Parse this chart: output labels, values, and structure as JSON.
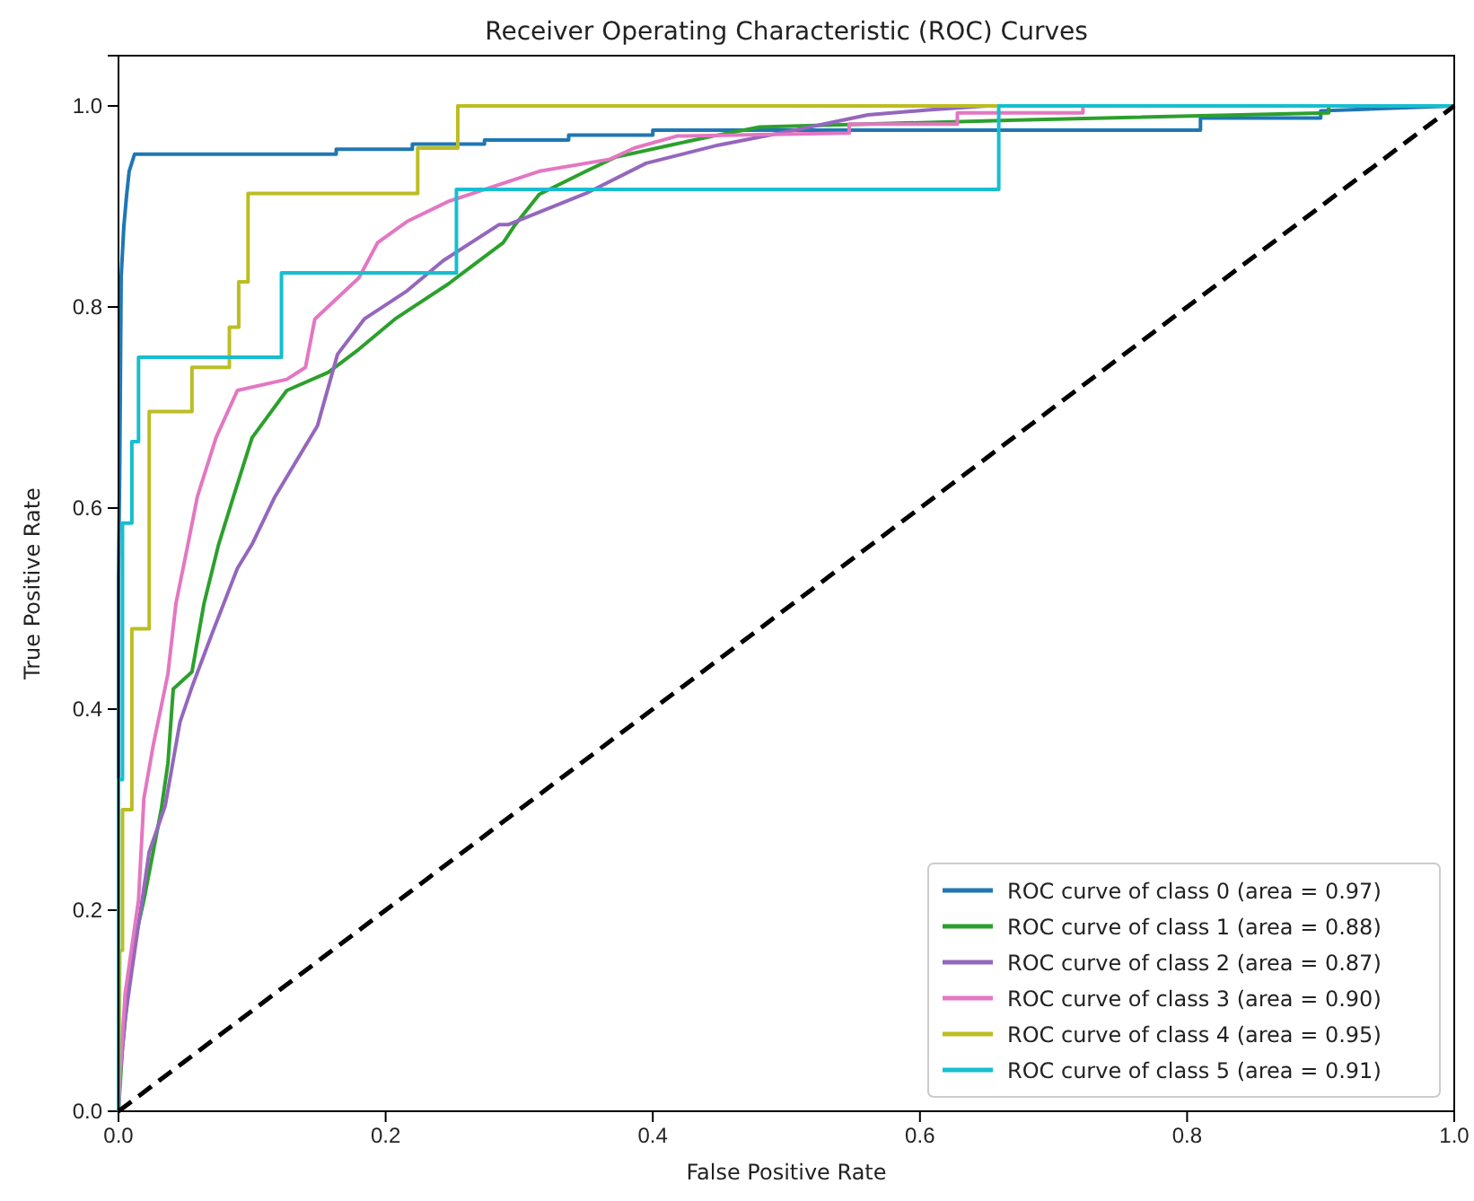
{
  "chart_data": {
    "type": "line",
    "title": "Receiver Operating Characteristic (ROC) Curves",
    "xlabel": "False Positive Rate",
    "ylabel": "True Positive Rate",
    "xlim": [
      0,
      1
    ],
    "ylim": [
      0,
      1.05
    ],
    "xticks": [
      {
        "value": 0,
        "label": "0.0"
      },
      {
        "value": 0.2,
        "label": "0.2"
      },
      {
        "value": 0.4,
        "label": "0.4"
      },
      {
        "value": 0.6,
        "label": "0.6"
      },
      {
        "value": 0.8,
        "label": "0.8"
      },
      {
        "value": 1,
        "label": "1.0"
      }
    ],
    "yticks": [
      {
        "value": 0,
        "label": "0.0"
      },
      {
        "value": 0.2,
        "label": "0.2"
      },
      {
        "value": 0.4,
        "label": "0.4"
      },
      {
        "value": 0.6,
        "label": "0.6"
      },
      {
        "value": 0.8,
        "label": "0.8"
      },
      {
        "value": 1,
        "label": "1.0"
      }
    ],
    "legend": "bottom right",
    "series": [
      {
        "name": "ROC curve of class 0 (area = 0.97)",
        "color": "#1f77b4",
        "x": [
          0,
          0,
          0.001,
          0.002,
          0.004,
          0.006,
          0.008,
          0.012,
          0.163,
          0.163,
          0.22,
          0.22,
          0.274,
          0.274,
          0.337,
          0.337,
          0.4,
          0.4,
          0.81,
          0.81,
          0.9,
          0.9,
          1
        ],
        "values": [
          0,
          0.53,
          0.65,
          0.83,
          0.88,
          0.91,
          0.935,
          0.952,
          0.952,
          0.957,
          0.957,
          0.962,
          0.962,
          0.966,
          0.966,
          0.971,
          0.971,
          0.976,
          0.976,
          0.988,
          0.988,
          0.995,
          1
        ]
      },
      {
        "name": "ROC curve of class 1 (area = 0.88)",
        "color": "#2ca02c",
        "x": [
          0,
          0.003,
          0.01,
          0.019,
          0.032,
          0.037,
          0.041,
          0.055,
          0.064,
          0.075,
          0.086,
          0.1,
          0.126,
          0.157,
          0.18,
          0.207,
          0.247,
          0.288,
          0.297,
          0.315,
          0.35,
          0.372,
          0.413,
          0.445,
          0.48,
          0.673,
          0.906,
          0.906,
          1
        ],
        "values": [
          0,
          0.064,
          0.157,
          0.21,
          0.3,
          0.346,
          0.42,
          0.437,
          0.505,
          0.564,
          0.611,
          0.67,
          0.717,
          0.735,
          0.758,
          0.788,
          0.823,
          0.864,
          0.882,
          0.912,
          0.935,
          0.949,
          0.961,
          0.97,
          0.979,
          0.986,
          0.993,
          1,
          1
        ]
      },
      {
        "name": "ROC curve of class 2 (area = 0.87)",
        "color": "#9467bd",
        "x": [
          0,
          0.001,
          0.005,
          0.01,
          0.023,
          0.035,
          0.046,
          0.055,
          0.07,
          0.089,
          0.1,
          0.117,
          0.149,
          0.164,
          0.184,
          0.216,
          0.243,
          0.285,
          0.292,
          0.35,
          0.395,
          0.449,
          0.503,
          0.561,
          0.606,
          0.65,
          1
        ],
        "values": [
          0,
          0.034,
          0.092,
          0.14,
          0.258,
          0.304,
          0.387,
          0.422,
          0.475,
          0.54,
          0.564,
          0.611,
          0.682,
          0.753,
          0.788,
          0.816,
          0.846,
          0.882,
          0.882,
          0.913,
          0.943,
          0.961,
          0.975,
          0.991,
          0.996,
          1,
          1
        ]
      },
      {
        "name": "ROC curve of class 3 (area = 0.90)",
        "color": "#e377c2",
        "x": [
          0,
          0.001,
          0.005,
          0.015,
          0.019,
          0.026,
          0.037,
          0.043,
          0.052,
          0.059,
          0.073,
          0.089,
          0.126,
          0.14,
          0.147,
          0.18,
          0.194,
          0.216,
          0.247,
          0.315,
          0.368,
          0.386,
          0.418,
          0.547,
          0.547,
          0.628,
          0.628,
          0.722,
          0.722,
          1
        ],
        "values": [
          0,
          0.034,
          0.117,
          0.21,
          0.311,
          0.364,
          0.435,
          0.505,
          0.564,
          0.611,
          0.67,
          0.717,
          0.728,
          0.74,
          0.788,
          0.829,
          0.864,
          0.885,
          0.905,
          0.935,
          0.947,
          0.958,
          0.97,
          0.973,
          0.982,
          0.982,
          0.993,
          0.993,
          1,
          1
        ]
      },
      {
        "name": "ROC curve of class 4 (area = 0.95)",
        "color": "#bcbd22",
        "x": [
          0,
          0.001,
          0.003,
          0.003,
          0.01,
          0.01,
          0.023,
          0.023,
          0.055,
          0.055,
          0.083,
          0.083,
          0.09,
          0.09,
          0.097,
          0.097,
          0.224,
          0.224,
          0.254,
          0.254,
          1
        ],
        "values": [
          0,
          0.16,
          0.16,
          0.3,
          0.3,
          0.48,
          0.48,
          0.696,
          0.696,
          0.74,
          0.74,
          0.78,
          0.78,
          0.825,
          0.825,
          0.913,
          0.913,
          0.958,
          0.958,
          1,
          1
        ]
      },
      {
        "name": "ROC curve of class 5 (area = 0.91)",
        "color": "#17becf",
        "x": [
          0,
          0,
          0.003,
          0.003,
          0.01,
          0.01,
          0.015,
          0.015,
          0.122,
          0.122,
          0.253,
          0.253,
          0.659,
          0.659,
          1
        ],
        "values": [
          0,
          0.33,
          0.33,
          0.585,
          0.585,
          0.666,
          0.666,
          0.75,
          0.75,
          0.834,
          0.834,
          0.917,
          0.917,
          1,
          1
        ]
      },
      {
        "color": "#000000",
        "line_style": "dashed",
        "x": [
          0,
          1
        ],
        "values": [
          0,
          1
        ]
      }
    ]
  }
}
